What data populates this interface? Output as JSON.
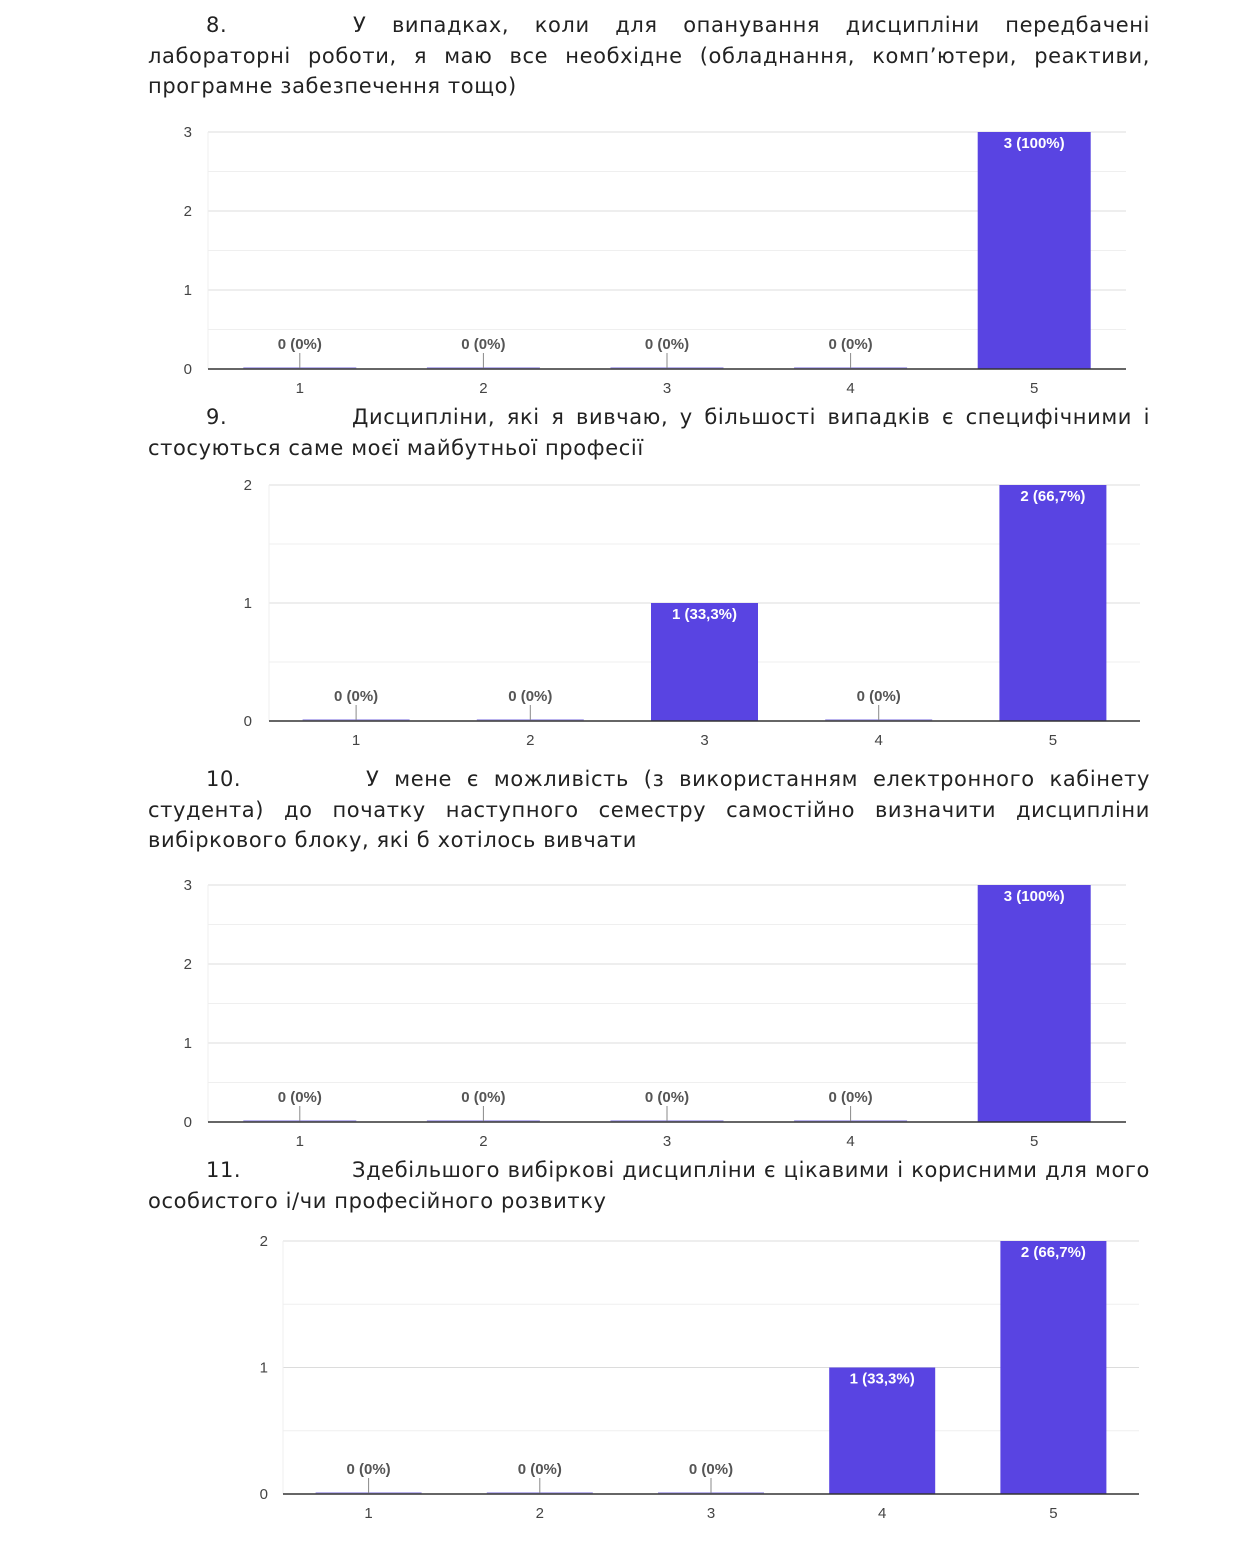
{
  "questions": [
    {
      "number": "8.",
      "text": "У випадках, коли для опанування дисципліни передбачені лабораторні роботи, я маю все необхідне (обладнання, комп’ютери, реактиви, програмне забезпечення тощо)"
    },
    {
      "number": "9.",
      "text": "Дисципліни, які я вивчаю, у більшості випадків є специфічними і стосуються саме моєї майбутньої професії"
    },
    {
      "number": "10.",
      "text": "У мене є можливість (з використанням електронного кабінету студента) до початку наступного семестру самостійно визначити дисципліни вибіркового блоку, які б хотілось вивчати"
    },
    {
      "number": "11.",
      "text": "Здебільшого вибіркові дисципліни є цікавими і корисними для мого особистого і/чи професійного розвитку"
    }
  ],
  "chart_data": [
    {
      "type": "bar",
      "categories": [
        "1",
        "2",
        "3",
        "4",
        "5"
      ],
      "values": [
        0,
        0,
        0,
        0,
        3
      ],
      "data_labels": [
        "0 (0%)",
        "0 (0%)",
        "0 (0%)",
        "0 (0%)",
        "3 (100%)"
      ],
      "yticks": [
        "0",
        "1",
        "2",
        "3"
      ],
      "ylim": [
        0,
        3
      ],
      "color": "#5944e2",
      "grid": true,
      "title": "",
      "xlabel": "",
      "ylabel": ""
    },
    {
      "type": "bar",
      "categories": [
        "1",
        "2",
        "3",
        "4",
        "5"
      ],
      "values": [
        0,
        0,
        1,
        0,
        2
      ],
      "data_labels": [
        "0 (0%)",
        "0 (0%)",
        "1 (33,3%)",
        "0 (0%)",
        "2 (66,7%)"
      ],
      "yticks": [
        "0",
        "1",
        "2"
      ],
      "ylim": [
        0,
        2
      ],
      "color": "#5944e2",
      "grid": true,
      "title": "",
      "xlabel": "",
      "ylabel": ""
    },
    {
      "type": "bar",
      "categories": [
        "1",
        "2",
        "3",
        "4",
        "5"
      ],
      "values": [
        0,
        0,
        0,
        0,
        3
      ],
      "data_labels": [
        "0 (0%)",
        "0 (0%)",
        "0 (0%)",
        "0 (0%)",
        "3 (100%)"
      ],
      "yticks": [
        "0",
        "1",
        "2",
        "3"
      ],
      "ylim": [
        0,
        3
      ],
      "color": "#5944e2",
      "grid": true,
      "title": "",
      "xlabel": "",
      "ylabel": ""
    },
    {
      "type": "bar",
      "categories": [
        "1",
        "2",
        "3",
        "4",
        "5"
      ],
      "values": [
        0,
        0,
        0,
        1,
        2
      ],
      "data_labels": [
        "0 (0%)",
        "0 (0%)",
        "0 (0%)",
        "1 (33,3%)",
        "2 (66,7%)"
      ],
      "yticks": [
        "0",
        "1",
        "2"
      ],
      "ylim": [
        0,
        2
      ],
      "color": "#5944e2",
      "grid": true,
      "title": "",
      "xlabel": "",
      "ylabel": ""
    }
  ]
}
